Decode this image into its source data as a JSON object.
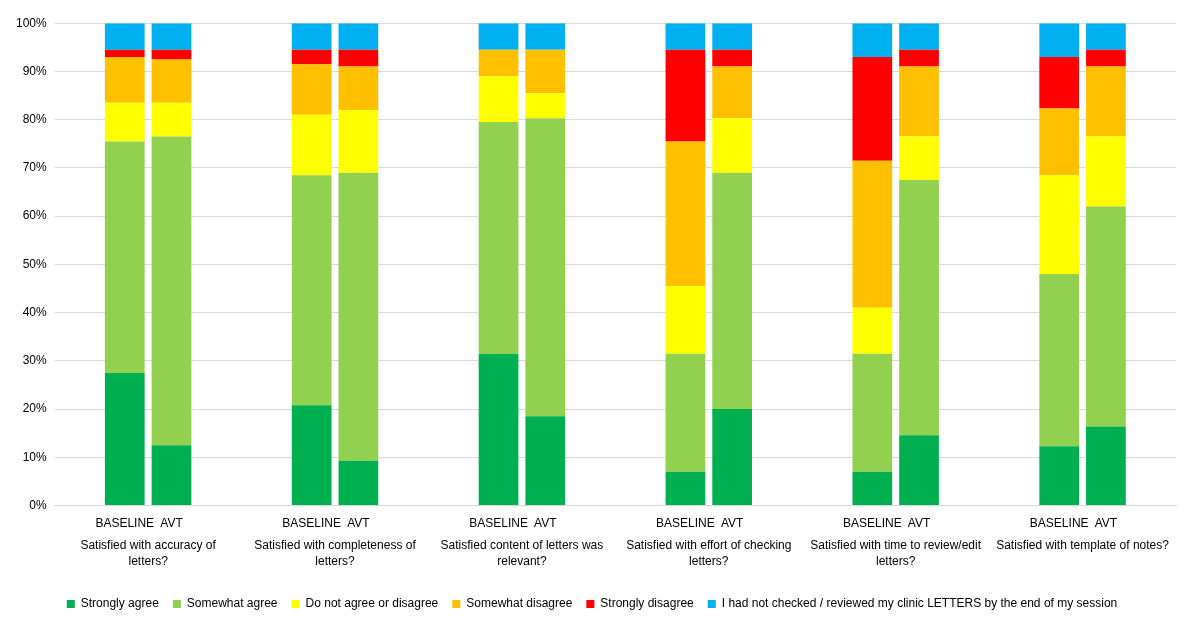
{
  "chart_data": {
    "type": "bar",
    "stacked": true,
    "categories": [
      null,
      "BASELINE",
      "AVT",
      null,
      null,
      "BASELINE",
      "AVT",
      null,
      null,
      "BASELINE",
      "AVT",
      null,
      null,
      "BASELINE",
      "AVT",
      null,
      null,
      "BASELINE",
      "AVT",
      null,
      null,
      "BASELINE",
      "AVT",
      null
    ],
    "series": [
      {
        "name": "Strongly agree",
        "color": "#00b050",
        "values": [
          null,
          27.5,
          12.5,
          null,
          null,
          20.8,
          9.3,
          null,
          null,
          31.5,
          18.5,
          null,
          null,
          7,
          20,
          null,
          null,
          7,
          14.6,
          null,
          null,
          12.3,
          16.4,
          null
        ]
      },
      {
        "name": "Somewhat agree",
        "color": "#92d050",
        "values": [
          null,
          48,
          64,
          null,
          null,
          47.7,
          59.7,
          null,
          null,
          48,
          61.8,
          null,
          null,
          24.5,
          49,
          null,
          null,
          24.5,
          52.9,
          null,
          null,
          35.7,
          45.6,
          null
        ]
      },
      {
        "name": "Do not agree or disagree",
        "color": "#ffff00",
        "values": [
          null,
          8,
          7,
          null,
          null,
          12.5,
          13,
          null,
          null,
          9.5,
          5.2,
          null,
          null,
          14,
          11.3,
          null,
          null,
          9.5,
          9,
          null,
          null,
          20.5,
          14.5,
          null
        ]
      },
      {
        "name": "Somewhat disagree",
        "color": "#ffc000",
        "values": [
          null,
          9.5,
          9,
          null,
          null,
          10.5,
          9,
          null,
          null,
          5.5,
          9,
          null,
          null,
          30,
          10.7,
          null,
          null,
          30.5,
          14.5,
          null,
          null,
          13.8,
          14.5,
          null
        ]
      },
      {
        "name": "Strongly disagree",
        "color": "#ff0000",
        "values": [
          null,
          1.5,
          2,
          null,
          null,
          3,
          3.5,
          null,
          null,
          0,
          0,
          null,
          null,
          19,
          3.5,
          null,
          null,
          21.5,
          3.5,
          null,
          null,
          10.7,
          3.5,
          null
        ]
      },
      {
        "name": "I had not checked / reviewed my clinic LETTERS by the end of my session",
        "color": "#00b0f0",
        "values": [
          null,
          5.5,
          5.5,
          null,
          null,
          5.5,
          5.5,
          null,
          null,
          5.5,
          5.5,
          null,
          null,
          5.5,
          5.5,
          null,
          null,
          7,
          5.5,
          null,
          null,
          7,
          5.5,
          null
        ]
      }
    ],
    "ylim": [
      0,
      100
    ],
    "yticks": [
      {
        "value": 0,
        "label": "0%"
      },
      {
        "value": 10,
        "label": "10%"
      },
      {
        "value": 20,
        "label": "20%"
      },
      {
        "value": 30,
        "label": "30%"
      },
      {
        "value": 40,
        "label": "40%"
      },
      {
        "value": 50,
        "label": "50%"
      },
      {
        "value": 60,
        "label": "60%"
      },
      {
        "value": 70,
        "label": "70%"
      },
      {
        "value": 80,
        "label": "80%"
      },
      {
        "value": 90,
        "label": "90%"
      },
      {
        "value": 100,
        "label": "100%"
      }
    ],
    "grid": "y",
    "legend": "bottom",
    "annotations": [
      "Satisfied with accuracy of letters?",
      "Satisfied with completeness of letters?",
      "Satisfied content of letters was relevant?",
      "Satisfied with effort of checking letters?",
      "Satisfied with time to review/edit letters?",
      "Satisfied with template of notes?"
    ]
  }
}
